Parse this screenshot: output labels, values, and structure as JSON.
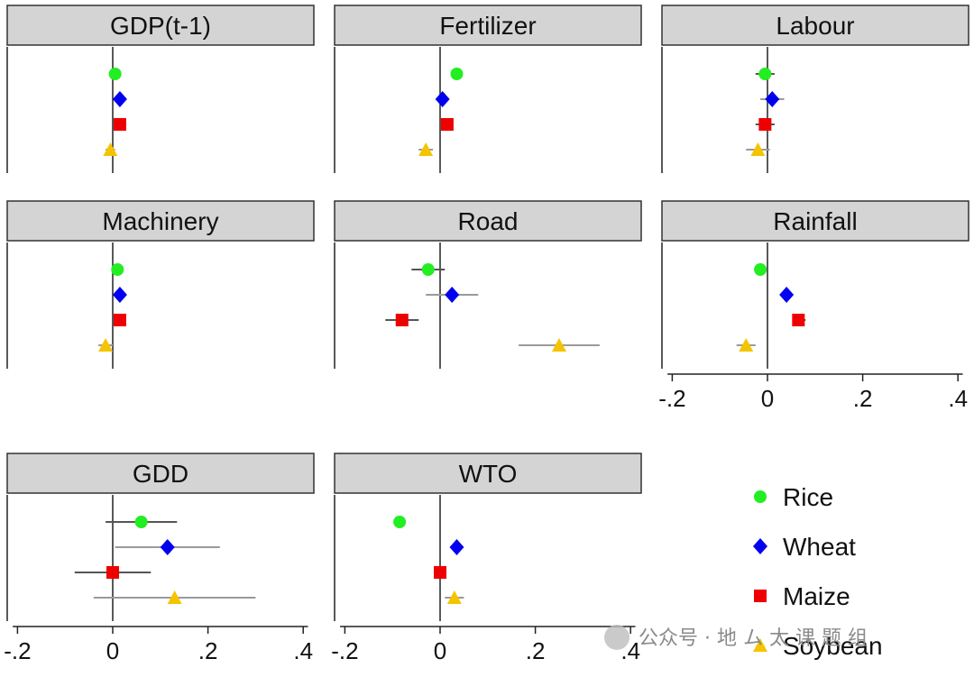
{
  "chart_data": {
    "type": "scatter",
    "subtype": "coefficient-plot-with-confidence-intervals",
    "x_ticks": [
      "-.2",
      "0",
      ".2",
      ".4"
    ],
    "x_tick_values": [
      -0.2,
      0,
      0.2,
      0.4
    ],
    "xlim": [
      -0.22,
      0.42
    ],
    "reference_line_x": 0,
    "series": [
      {
        "name": "Rice",
        "color": "#22ee22",
        "marker": "circle"
      },
      {
        "name": "Wheat",
        "color": "#0000ee",
        "marker": "diamond"
      },
      {
        "name": "Maize",
        "color": "#ee0000",
        "marker": "square"
      },
      {
        "name": "Soybean",
        "color": "#f5c400",
        "marker": "triangle"
      }
    ],
    "panels": [
      {
        "title": "GDP(t-1)",
        "points": [
          {
            "series": "Rice",
            "estimate": 0.005,
            "lo": 0.0,
            "hi": 0.01
          },
          {
            "series": "Wheat",
            "estimate": 0.015,
            "lo": 0.01,
            "hi": 0.02
          },
          {
            "series": "Maize",
            "estimate": 0.015,
            "lo": 0.01,
            "hi": 0.02
          },
          {
            "series": "Soybean",
            "estimate": -0.005,
            "lo": -0.015,
            "hi": 0.005
          }
        ]
      },
      {
        "title": "Fertilizer",
        "points": [
          {
            "series": "Rice",
            "estimate": 0.035,
            "lo": 0.025,
            "hi": 0.045
          },
          {
            "series": "Wheat",
            "estimate": 0.005,
            "lo": -0.005,
            "hi": 0.015
          },
          {
            "series": "Maize",
            "estimate": 0.015,
            "lo": 0.005,
            "hi": 0.025
          },
          {
            "series": "Soybean",
            "estimate": -0.03,
            "lo": -0.045,
            "hi": -0.015
          }
        ]
      },
      {
        "title": "Labour",
        "points": [
          {
            "series": "Rice",
            "estimate": -0.005,
            "lo": -0.025,
            "hi": 0.015
          },
          {
            "series": "Wheat",
            "estimate": 0.01,
            "lo": -0.015,
            "hi": 0.035
          },
          {
            "series": "Maize",
            "estimate": -0.005,
            "lo": -0.025,
            "hi": 0.015
          },
          {
            "series": "Soybean",
            "estimate": -0.02,
            "lo": -0.045,
            "hi": 0.005
          }
        ]
      },
      {
        "title": "Machinery",
        "points": [
          {
            "series": "Rice",
            "estimate": 0.01,
            "lo": 0.0,
            "hi": 0.02
          },
          {
            "series": "Wheat",
            "estimate": 0.015,
            "lo": 0.005,
            "hi": 0.025
          },
          {
            "series": "Maize",
            "estimate": 0.015,
            "lo": 0.005,
            "hi": 0.025
          },
          {
            "series": "Soybean",
            "estimate": -0.015,
            "lo": -0.03,
            "hi": 0.0
          }
        ]
      },
      {
        "title": "Road",
        "points": [
          {
            "series": "Rice",
            "estimate": -0.025,
            "lo": -0.06,
            "hi": 0.01
          },
          {
            "series": "Wheat",
            "estimate": 0.025,
            "lo": -0.03,
            "hi": 0.08
          },
          {
            "series": "Maize",
            "estimate": -0.08,
            "lo": -0.115,
            "hi": -0.045
          },
          {
            "series": "Soybean",
            "estimate": 0.25,
            "lo": 0.165,
            "hi": 0.335
          }
        ]
      },
      {
        "title": "Rainfall",
        "points": [
          {
            "series": "Rice",
            "estimate": -0.015,
            "lo": -0.025,
            "hi": -0.005
          },
          {
            "series": "Wheat",
            "estimate": 0.04,
            "lo": 0.03,
            "hi": 0.05
          },
          {
            "series": "Maize",
            "estimate": 0.065,
            "lo": 0.055,
            "hi": 0.08
          },
          {
            "series": "Soybean",
            "estimate": -0.045,
            "lo": -0.065,
            "hi": -0.025
          }
        ]
      },
      {
        "title": "GDD",
        "points": [
          {
            "series": "Rice",
            "estimate": 0.06,
            "lo": -0.015,
            "hi": 0.135
          },
          {
            "series": "Wheat",
            "estimate": 0.115,
            "lo": 0.005,
            "hi": 0.225
          },
          {
            "series": "Maize",
            "estimate": 0.0,
            "lo": -0.08,
            "hi": 0.08
          },
          {
            "series": "Soybean",
            "estimate": 0.13,
            "lo": -0.04,
            "hi": 0.3
          }
        ]
      },
      {
        "title": "WTO",
        "points": [
          {
            "series": "Rice",
            "estimate": -0.085,
            "lo": -0.095,
            "hi": -0.075
          },
          {
            "series": "Wheat",
            "estimate": 0.035,
            "lo": 0.025,
            "hi": 0.045
          },
          {
            "series": "Maize",
            "estimate": 0.0,
            "lo": -0.01,
            "hi": 0.01
          },
          {
            "series": "Soybean",
            "estimate": 0.03,
            "lo": 0.01,
            "hi": 0.05
          }
        ]
      }
    ]
  },
  "watermark": {
    "text": "公众号 · 地 ム 太 课 题 组"
  }
}
